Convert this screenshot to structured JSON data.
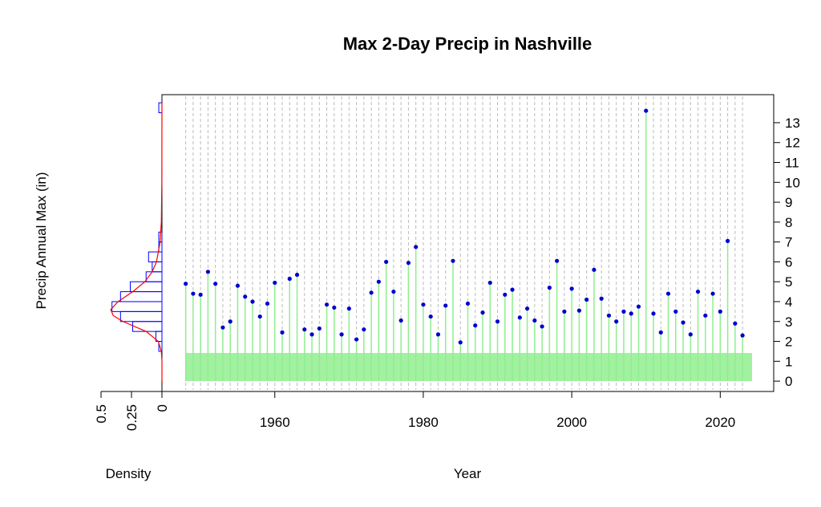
{
  "chart_data": [
    {
      "type": "scatter",
      "title": "Max 2-Day Precip in Nashville",
      "xlabel": "Year",
      "ylabel": "Precip Annual Max (in)",
      "x": [
        1948,
        1949,
        1950,
        1951,
        1952,
        1953,
        1954,
        1955,
        1956,
        1957,
        1958,
        1959,
        1960,
        1961,
        1962,
        1963,
        1964,
        1965,
        1966,
        1967,
        1968,
        1969,
        1970,
        1971,
        1972,
        1973,
        1974,
        1975,
        1976,
        1977,
        1978,
        1979,
        1980,
        1981,
        1982,
        1983,
        1984,
        1985,
        1986,
        1987,
        1988,
        1989,
        1990,
        1991,
        1992,
        1993,
        1994,
        1995,
        1996,
        1997,
        1998,
        1999,
        2000,
        2001,
        2002,
        2003,
        2004,
        2005,
        2006,
        2007,
        2008,
        2009,
        2010,
        2011,
        2012,
        2013,
        2014,
        2015,
        2016,
        2017,
        2018,
        2019,
        2020,
        2021,
        2022,
        2023
      ],
      "values": [
        4.9,
        4.4,
        4.35,
        5.5,
        4.9,
        2.7,
        3.0,
        4.8,
        4.25,
        4.0,
        3.25,
        3.9,
        4.95,
        2.45,
        5.15,
        5.35,
        2.6,
        2.35,
        2.65,
        3.85,
        3.7,
        2.35,
        3.65,
        2.1,
        2.6,
        4.45,
        5.0,
        6.0,
        4.5,
        3.05,
        5.95,
        6.75,
        3.85,
        3.25,
        2.35,
        3.8,
        6.05,
        1.95,
        3.9,
        2.8,
        3.45,
        4.95,
        3.0,
        4.35,
        4.6,
        3.2,
        3.65,
        3.05,
        2.75,
        4.7,
        6.05,
        3.5,
        4.65,
        3.55,
        4.1,
        5.6,
        4.15,
        3.3,
        3.0,
        3.5,
        3.4,
        3.75,
        13.6,
        3.4,
        2.45,
        4.4,
        3.5,
        2.95,
        2.35,
        4.5,
        3.3,
        4.4,
        3.5,
        7.05,
        2.9,
        2.3
      ],
      "color": "#0000cd",
      "stem_color": "#90ee90",
      "xlim": [
        1944.8,
        2027.2
      ],
      "xticks": [
        1960,
        1980,
        2000,
        2020
      ],
      "ylim": [
        -0.52,
        14.41
      ],
      "yticks": [
        0,
        1,
        2,
        3,
        4,
        5,
        6,
        7,
        8,
        9,
        10,
        11,
        12,
        13
      ],
      "y_axis_side": "right",
      "grid": true
    },
    {
      "type": "histogram",
      "xlabel": "Density",
      "orientation": "horizontal",
      "bins": [
        1.5,
        2,
        2.5,
        3,
        3.5,
        4,
        4.5,
        5,
        5.5,
        6,
        6.5,
        7,
        7.5,
        8,
        8.5,
        9,
        9.5,
        10,
        10.5,
        11,
        11.5,
        12,
        12.5,
        13,
        13.5,
        14
      ],
      "values": [
        0.026,
        0.05,
        0.24,
        0.34,
        0.41,
        0.34,
        0.26,
        0.13,
        0.08,
        0.11,
        0.026,
        0.026,
        0,
        0,
        0,
        0,
        0,
        0,
        0,
        0,
        0,
        0,
        0,
        0,
        0.026
      ],
      "color": "#0000ff",
      "xlim": [
        0.5,
        0
      ],
      "xticks": [
        0.5,
        0.25,
        0
      ],
      "curve": {
        "color": "#ff0000",
        "y": [
          0,
          1,
          1.5,
          2,
          2.5,
          3,
          3.3,
          3.6,
          4,
          4.5,
          5,
          5.5,
          6,
          7,
          8,
          10,
          14
        ],
        "density": [
          0,
          0,
          0.005,
          0.03,
          0.13,
          0.32,
          0.4,
          0.42,
          0.36,
          0.24,
          0.14,
          0.08,
          0.045,
          0.015,
          0.005,
          0.001,
          0
        ]
      }
    }
  ]
}
